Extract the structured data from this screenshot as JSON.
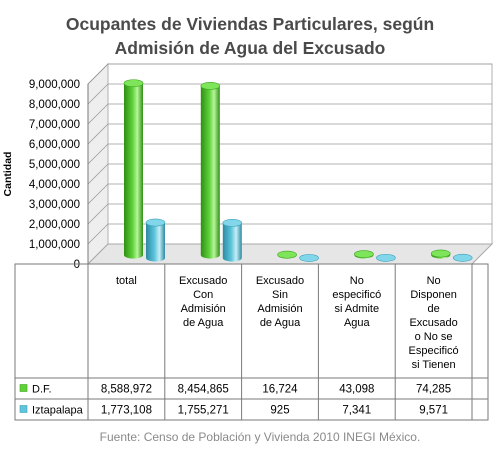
{
  "chart_data": {
    "type": "bar",
    "title_line1": "Ocupantes de Viviendas Particulares, según",
    "title_line2": "Admisión de Agua del Excusado",
    "ylabel": "Cantidad",
    "ylim": [
      0,
      9000000
    ],
    "yticks": [
      "0",
      "1,000,000",
      "2,000,000",
      "3,000,000",
      "4,000,000",
      "5,000,000",
      "6,000,000",
      "7,000,000",
      "8,000,000",
      "9,000,000"
    ],
    "categories": [
      [
        "total"
      ],
      [
        "Excusado",
        "Con",
        "Admisión",
        "de Agua"
      ],
      [
        "Excusado",
        "Sin",
        "Admisión",
        "de Agua"
      ],
      [
        "No",
        "especificó",
        "si Admite",
        "Agua"
      ],
      [
        "No",
        "Disponen",
        "de",
        "Excusado",
        "o No se",
        "Especificó",
        "si Tienen"
      ]
    ],
    "series": [
      {
        "name": "D.F.",
        "color": "#5fd23a",
        "values": [
          8588972,
          8454865,
          16724,
          43098,
          74285
        ],
        "labels": [
          "8,588,972",
          "8,454,865",
          "16,724",
          "43,098",
          "74,285"
        ]
      },
      {
        "name": "Iztapalapa",
        "color": "#5ec5dc",
        "values": [
          1773108,
          1755271,
          925,
          7341,
          9571
        ],
        "labels": [
          "1,773,108",
          "1,755,271",
          "925",
          "7,341",
          "9,571"
        ]
      }
    ],
    "grid": true,
    "legend": "table-left"
  },
  "source": "Fuente: Censo de Población y Vivienda 2010 INEGI México."
}
